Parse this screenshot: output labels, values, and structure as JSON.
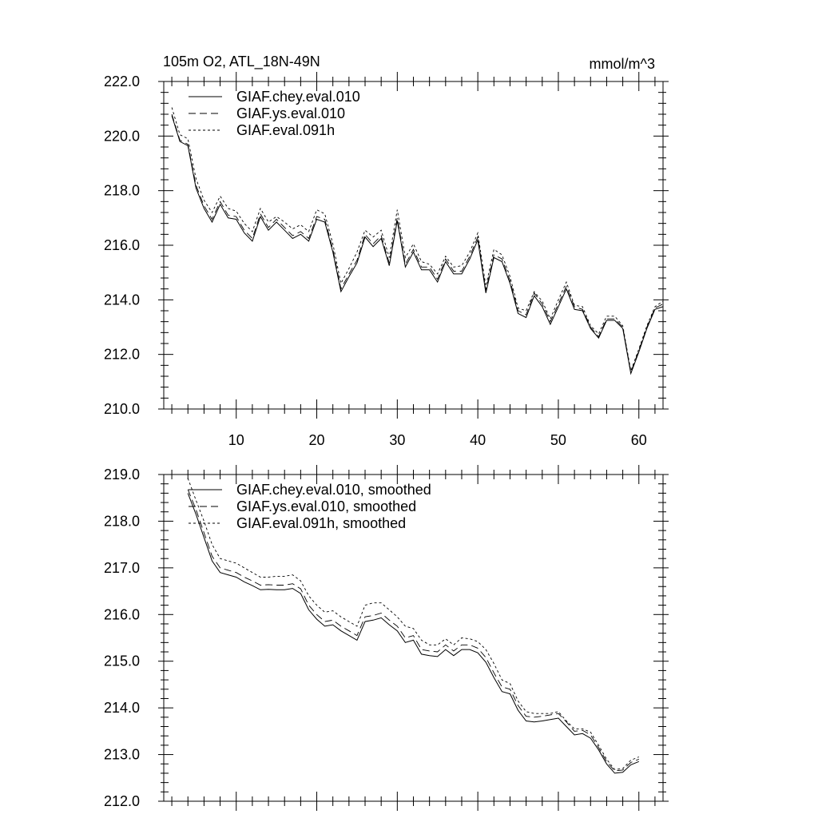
{
  "chart_data": [
    {
      "type": "line",
      "title": "105m O2, ATL_18N-49N",
      "units": "mmol/m^3",
      "xlabel": "",
      "ylabel": "",
      "xlim": [
        1,
        63
      ],
      "ylim": [
        210.0,
        222.0
      ],
      "xticks": [
        10,
        20,
        30,
        40,
        50,
        60
      ],
      "xtick_labels": [
        "10",
        "20",
        "30",
        "40",
        "50",
        "60"
      ],
      "yticks": [
        210.0,
        212.0,
        214.0,
        216.0,
        218.0,
        220.0,
        222.0
      ],
      "ytick_labels": [
        "210.0",
        "212.0",
        "214.0",
        "216.0",
        "218.0",
        "220.0",
        "222.0"
      ],
      "legend_position": "top-left",
      "x_start": 2,
      "series": [
        {
          "name": "GIAF.chey.eval.010",
          "style": "solid",
          "values": [
            220.75,
            219.8,
            219.65,
            218.1,
            217.35,
            216.85,
            217.5,
            217.0,
            216.95,
            216.45,
            216.15,
            217.05,
            216.55,
            216.85,
            216.55,
            216.25,
            216.4,
            216.15,
            216.95,
            216.85,
            215.75,
            214.3,
            214.85,
            215.35,
            216.3,
            215.95,
            216.25,
            215.25,
            216.9,
            215.2,
            215.75,
            215.1,
            215.1,
            214.65,
            215.4,
            214.95,
            214.95,
            215.5,
            216.2,
            214.25,
            215.55,
            215.4,
            214.6,
            213.5,
            213.35,
            214.15,
            213.75,
            213.1,
            213.75,
            214.4,
            213.65,
            213.6,
            212.95,
            212.6,
            213.25,
            213.25,
            212.95,
            211.3,
            212.1,
            212.95,
            213.65,
            213.75
          ]
        },
        {
          "name": "GIAF.ys.eval.010",
          "style": "dashed",
          "values": [
            220.8,
            219.85,
            219.7,
            218.2,
            217.45,
            216.95,
            217.6,
            217.1,
            217.05,
            216.55,
            216.25,
            217.15,
            216.65,
            216.95,
            216.65,
            216.35,
            216.5,
            216.25,
            217.05,
            216.95,
            215.85,
            214.4,
            214.95,
            215.45,
            216.4,
            216.05,
            216.35,
            215.35,
            217.0,
            215.3,
            215.85,
            215.2,
            215.2,
            214.75,
            215.5,
            215.05,
            215.05,
            215.6,
            216.3,
            214.35,
            215.65,
            215.5,
            214.7,
            213.6,
            213.45,
            214.25,
            213.85,
            213.2,
            213.85,
            214.5,
            213.75,
            213.65,
            213.0,
            212.65,
            213.3,
            213.3,
            213.0,
            211.35,
            212.15,
            213.0,
            213.7,
            213.85
          ]
        },
        {
          "name": "GIAF.eval.091h",
          "style": "dotted",
          "values": [
            221.05,
            220.05,
            219.9,
            218.45,
            217.65,
            217.2,
            217.8,
            217.35,
            217.25,
            216.8,
            216.5,
            217.35,
            216.85,
            217.05,
            216.85,
            216.6,
            216.75,
            216.5,
            217.3,
            217.15,
            216.05,
            214.6,
            215.15,
            215.75,
            216.55,
            216.3,
            216.55,
            215.55,
            217.3,
            215.55,
            216.05,
            215.4,
            215.3,
            214.95,
            215.6,
            215.2,
            215.25,
            215.75,
            216.45,
            214.5,
            215.85,
            215.65,
            214.85,
            213.7,
            213.6,
            214.3,
            213.95,
            213.3,
            214.0,
            214.65,
            213.8,
            213.75,
            213.05,
            212.75,
            213.4,
            213.4,
            213.05,
            211.4,
            212.2,
            213.05,
            213.75,
            213.95
          ]
        }
      ]
    },
    {
      "type": "line",
      "title": "",
      "xlabel": "",
      "ylabel": "",
      "xlim": [
        1,
        63
      ],
      "ylim": [
        212.0,
        219.0
      ],
      "xticks": [
        10,
        20,
        30,
        40,
        50,
        60
      ],
      "yticks": [
        212.0,
        213.0,
        214.0,
        215.0,
        216.0,
        217.0,
        218.0,
        219.0
      ],
      "ytick_labels": [
        "212.0",
        "213.0",
        "214.0",
        "215.0",
        "216.0",
        "217.0",
        "218.0",
        "219.0"
      ],
      "legend_position": "top-left",
      "x_start": 4,
      "series": [
        {
          "name": "GIAF.chey.eval.010, smoothed",
          "style": "solid",
          "values": [
            218.6,
            218.15,
            217.65,
            217.15,
            216.9,
            216.85,
            216.8,
            216.7,
            216.62,
            216.53,
            216.54,
            216.53,
            216.53,
            216.56,
            216.45,
            216.1,
            215.9,
            215.75,
            215.78,
            215.65,
            215.55,
            215.45,
            215.85,
            215.88,
            215.93,
            215.78,
            215.65,
            215.4,
            215.45,
            215.15,
            215.12,
            215.1,
            215.25,
            215.12,
            215.25,
            215.25,
            215.18,
            214.98,
            214.65,
            214.35,
            214.3,
            213.95,
            213.72,
            213.7,
            213.72,
            213.75,
            213.78,
            213.6,
            213.42,
            213.45,
            213.35,
            213.1,
            212.8,
            212.6,
            212.62,
            212.78,
            212.85
          ]
        },
        {
          "name": "GIAF.ys.eval.010, smoothed",
          "style": "dashed",
          "values": [
            218.68,
            218.25,
            217.75,
            217.25,
            217.0,
            216.95,
            216.9,
            216.8,
            216.72,
            216.63,
            216.64,
            216.63,
            216.63,
            216.66,
            216.55,
            216.2,
            216.0,
            215.85,
            215.88,
            215.75,
            215.65,
            215.55,
            215.95,
            215.98,
            216.03,
            215.88,
            215.75,
            215.5,
            215.55,
            215.25,
            215.22,
            215.2,
            215.35,
            215.22,
            215.35,
            215.35,
            215.28,
            215.08,
            214.75,
            214.45,
            214.4,
            214.05,
            213.82,
            213.8,
            213.82,
            213.85,
            213.88,
            213.7,
            213.5,
            213.52,
            213.42,
            213.15,
            212.85,
            212.65,
            212.67,
            212.83,
            212.9
          ]
        },
        {
          "name": "GIAF.eval.091h, smoothed",
          "style": "dotted",
          "values": [
            218.92,
            218.45,
            218.0,
            217.5,
            217.2,
            217.15,
            217.1,
            217.0,
            216.9,
            216.8,
            216.8,
            216.82,
            216.82,
            216.85,
            216.72,
            216.4,
            216.2,
            216.05,
            216.08,
            215.95,
            215.85,
            215.75,
            216.2,
            216.25,
            216.25,
            216.1,
            215.95,
            215.75,
            215.7,
            215.45,
            215.35,
            215.35,
            215.48,
            215.35,
            215.5,
            215.48,
            215.42,
            215.25,
            214.95,
            214.6,
            214.52,
            214.15,
            213.92,
            213.88,
            213.88,
            213.88,
            213.92,
            213.72,
            213.55,
            213.55,
            213.48,
            213.2,
            212.9,
            212.68,
            212.7,
            212.88,
            212.95
          ]
        }
      ]
    }
  ]
}
